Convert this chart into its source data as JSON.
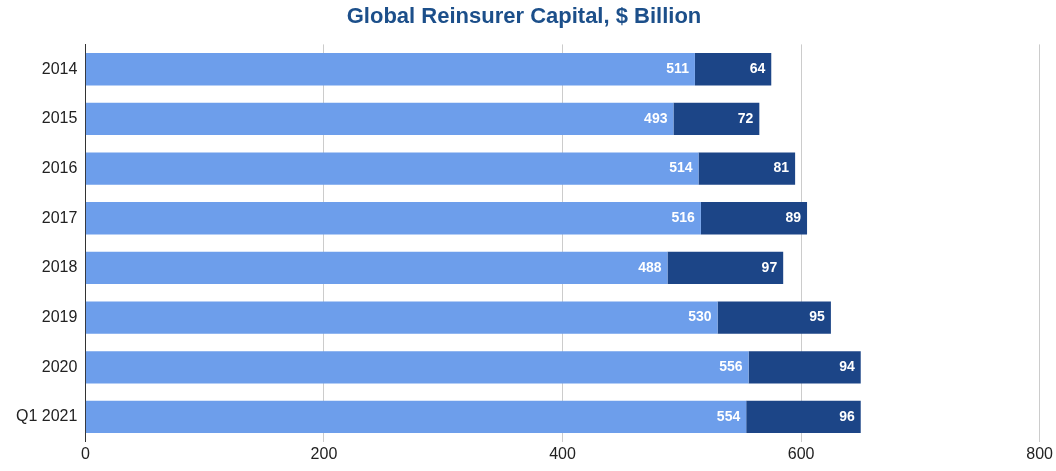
{
  "chart_data": {
    "type": "bar",
    "title": "Global Reinsurer Capital, $ Billion",
    "orientation": "horizontal",
    "stacked": true,
    "categories": [
      "2014",
      "2015",
      "2016",
      "2017",
      "2018",
      "2019",
      "2020",
      "Q1 2021"
    ],
    "series": [
      {
        "color": "#6d9eeb",
        "values": [
          511,
          493,
          514,
          516,
          488,
          530,
          556,
          554
        ]
      },
      {
        "color": "#1c4587",
        "values": [
          64,
          72,
          81,
          89,
          97,
          95,
          94,
          96
        ]
      }
    ],
    "xlim": [
      0,
      800
    ],
    "xticks": [
      0,
      200,
      400,
      600,
      800
    ],
    "grid": "x",
    "data_labels": true,
    "legend": false
  }
}
